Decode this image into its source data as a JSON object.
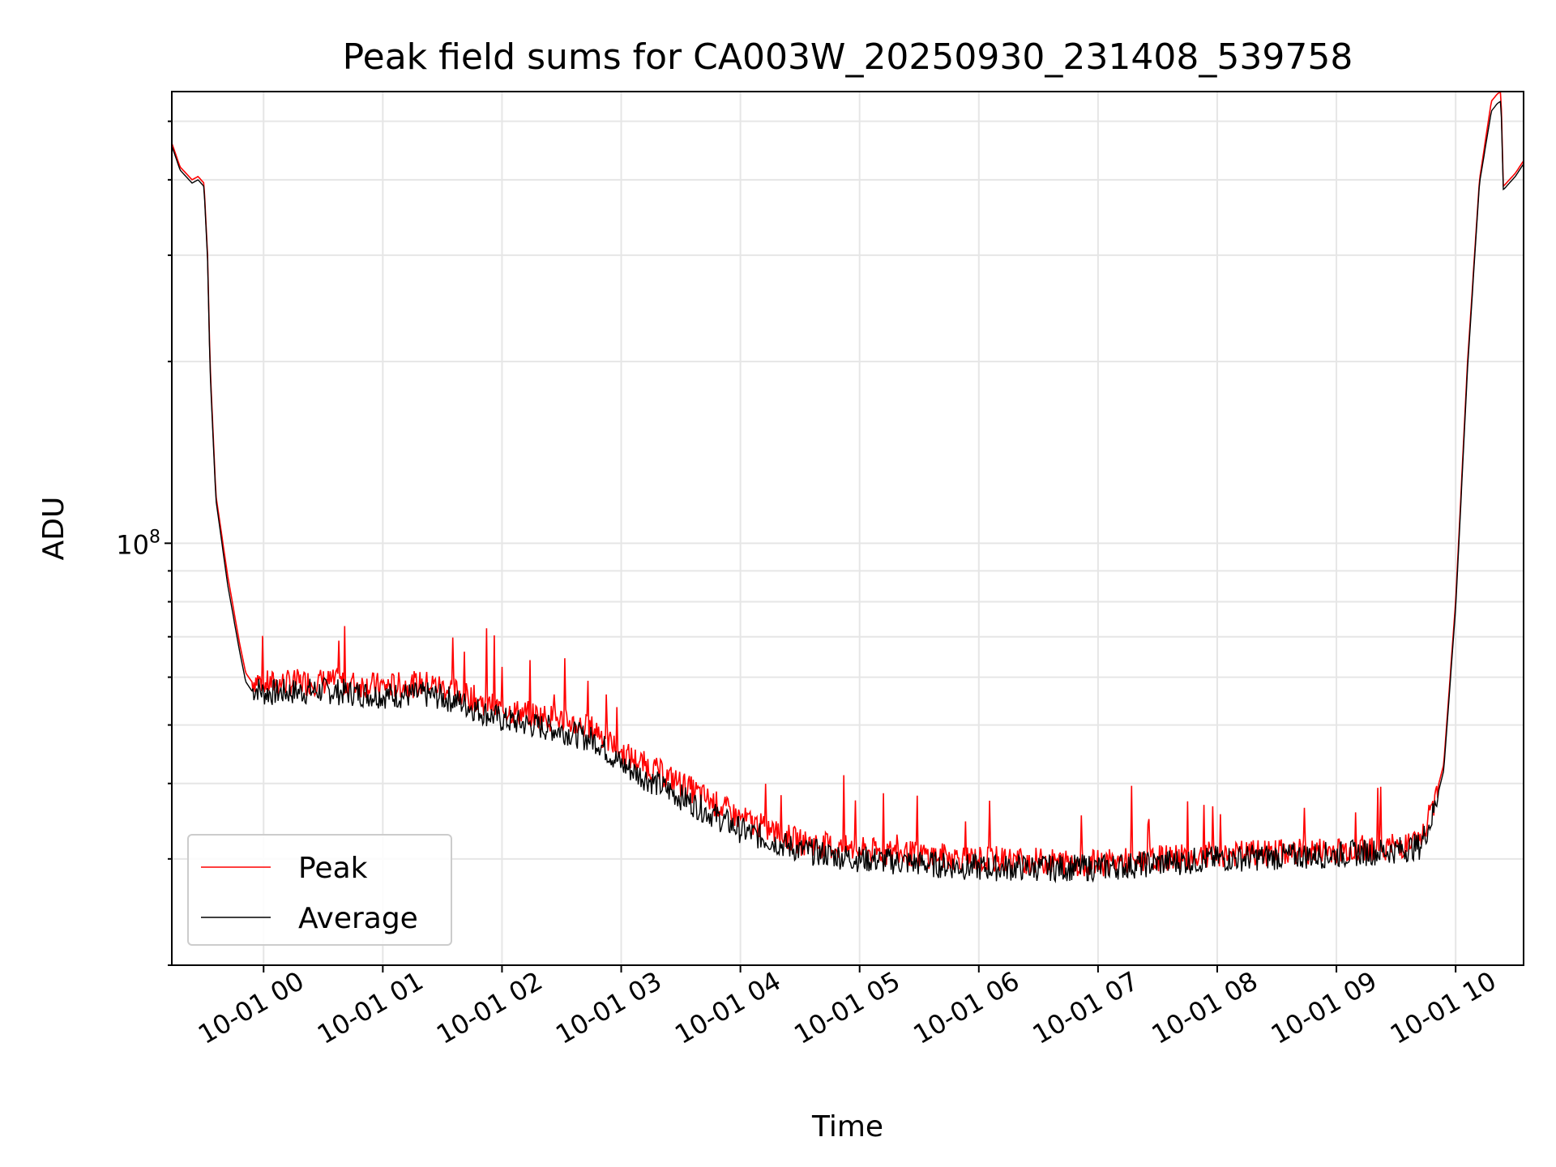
{
  "chart_data": {
    "type": "line",
    "title": "Peak field sums for CA003W_20250930_231408_539758",
    "xlabel": "Time",
    "ylabel": "ADU",
    "y_scale": "log",
    "y_tick_label": "10^8",
    "y_tick_base": "10",
    "y_tick_exp": "8",
    "ylim": [
      20000000,
      560000000
    ],
    "xlim_hours": [
      -0.77,
      10.57
    ],
    "x_ticks": [
      {
        "hour": 0,
        "label": "10-01 00"
      },
      {
        "hour": 1,
        "label": "10-01 01"
      },
      {
        "hour": 2,
        "label": "10-01 02"
      },
      {
        "hour": 3,
        "label": "10-01 03"
      },
      {
        "hour": 4,
        "label": "10-01 04"
      },
      {
        "hour": 5,
        "label": "10-01 05"
      },
      {
        "hour": 6,
        "label": "10-01 06"
      },
      {
        "hour": 7,
        "label": "10-01 07"
      },
      {
        "hour": 8,
        "label": "10-01 08"
      },
      {
        "hour": 9,
        "label": "10-01 09"
      },
      {
        "hour": 10,
        "label": "10-01 10"
      }
    ],
    "grid": true,
    "legend_location": "lower-left",
    "x_hours": [
      -0.77,
      -0.7,
      -0.6,
      -0.55,
      -0.5,
      -0.47,
      -0.45,
      -0.4,
      -0.3,
      -0.2,
      -0.15,
      -0.1,
      -0.05,
      0.0,
      0.5,
      1.0,
      1.4,
      1.6,
      2.0,
      2.5,
      2.8,
      3.0,
      3.5,
      4.0,
      4.5,
      5.0,
      6.0,
      7.0,
      8.0,
      9.0,
      9.5,
      9.7,
      9.8,
      9.9,
      10.0,
      10.1,
      10.2,
      10.3,
      10.35,
      10.38,
      10.4,
      10.5,
      10.57
    ],
    "series": [
      {
        "name": "Peak",
        "color": "#ff0000",
        "values": [
          460000000,
          420000000,
          400000000,
          405000000,
          395000000,
          300000000,
          200000000,
          120000000,
          88000000,
          68000000,
          61000000,
          59000000,
          59500000,
          58500000,
          59000000,
          58000000,
          58500000,
          57000000,
          53000000,
          51000000,
          49000000,
          45000000,
          40000000,
          35000000,
          32000000,
          31000000,
          30000000,
          29500000,
          30500000,
          31000000,
          31500000,
          32000000,
          36000000,
          43000000,
          80000000,
          200000000,
          400000000,
          540000000,
          555000000,
          560000000,
          390000000,
          410000000,
          430000000
        ]
      },
      {
        "name": "Average",
        "color": "#000000",
        "values": [
          455000000,
          415000000,
          395000000,
          400000000,
          390000000,
          295000000,
          195000000,
          118000000,
          85000000,
          66000000,
          59000000,
          57000000,
          57500000,
          56500000,
          57000000,
          56000000,
          56000000,
          55000000,
          51000000,
          49000000,
          47000000,
          43000000,
          38000000,
          33500000,
          31000000,
          30000000,
          29000000,
          29000000,
          30000000,
          30500000,
          31000000,
          31500000,
          35000000,
          42000000,
          78000000,
          195000000,
          395000000,
          520000000,
          535000000,
          540000000,
          385000000,
          405000000,
          425000000
        ]
      }
    ]
  }
}
